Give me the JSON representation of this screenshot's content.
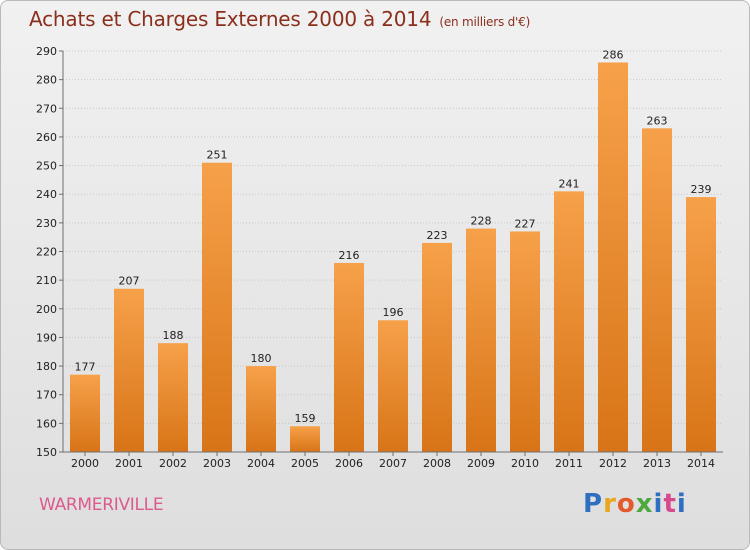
{
  "header": {
    "title": "Achats et Charges Externes 2000 à 2014",
    "unit": "(en milliers d'€)"
  },
  "footer": {
    "town": "WARMERIVILLE",
    "logo_letters": [
      "P",
      "r",
      "o",
      "x",
      "i",
      "t",
      "i"
    ],
    "logo_colors": [
      "#2f6fc1",
      "#e9a623",
      "#e45a2c",
      "#4fa83d",
      "#2f6fc1",
      "#d8488d",
      "#2f6fc1"
    ]
  },
  "colors": {
    "bar_top": "#f6a14a",
    "bar_bottom": "#d87417",
    "grid": "#c8c8c8",
    "axis": "#6f6f6f",
    "text": "#222222"
  },
  "chart_data": {
    "type": "bar",
    "categories": [
      "2000",
      "2001",
      "2002",
      "2003",
      "2004",
      "2005",
      "2006",
      "2007",
      "2008",
      "2009",
      "2010",
      "2011",
      "2012",
      "2013",
      "2014"
    ],
    "values": [
      177,
      207,
      188,
      251,
      180,
      159,
      216,
      196,
      223,
      228,
      227,
      241,
      286,
      263,
      239
    ],
    "ylim": [
      150,
      290
    ],
    "yticks": [
      150,
      160,
      170,
      180,
      190,
      200,
      210,
      220,
      230,
      240,
      250,
      260,
      270,
      280,
      290
    ],
    "grid": true
  }
}
